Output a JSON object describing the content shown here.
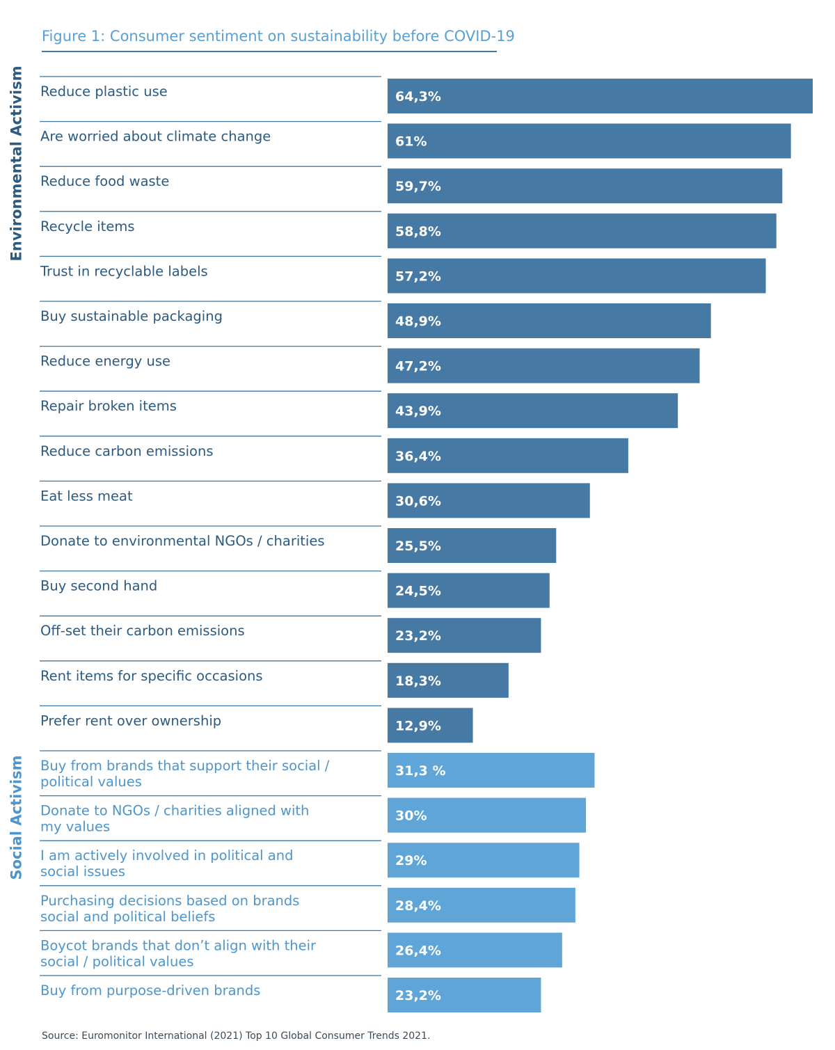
{
  "title": "Figure 1: Consumer sentiment on sustainability before COVID-19",
  "source": "Source: Euromonitor International (2021) Top 10 Global Consumer Trends 2021.",
  "colors": {
    "title": "#5b9fd0",
    "env_bar": "#4679a4",
    "env_text": "#2c5a80",
    "social_bar": "#5fa5d8",
    "social_text": "#4d95cc",
    "rule": "#3f78a5",
    "bar_label": "#ffffff"
  },
  "chart_data": {
    "type": "bar",
    "orientation": "horizontal",
    "title": "Figure 1: Consumer sentiment on sustainability before COVID-19",
    "xlim": [
      0,
      64.3
    ],
    "grid": false,
    "groups": [
      {
        "name": "Environmental Activism",
        "categories": [
          "Reduce plastic use",
          "Are worried about climate change",
          "Reduce food waste",
          "Recycle items",
          "Trust in recyclable labels",
          "Buy sustainable packaging",
          "Reduce energy use",
          "Repair broken items",
          "Reduce carbon emissions",
          "Eat less meat",
          "Donate to environmental NGOs / charities",
          "Buy second hand",
          "Off-set their carbon emissions",
          "Rent items for specific occasions",
          "Prefer rent over ownership"
        ],
        "values": [
          64.3,
          61,
          59.7,
          58.8,
          57.2,
          48.9,
          47.2,
          43.9,
          36.4,
          30.6,
          25.5,
          24.5,
          23.2,
          18.3,
          12.9
        ],
        "value_labels": [
          "64,3%",
          "61%",
          "59,7%",
          "58,8%",
          "57,2%",
          "48,9%",
          "47,2%",
          "43,9%",
          "36,4%",
          "30,6%",
          "25,5%",
          "24,5%",
          "23,2%",
          "18,3%",
          "12,9%"
        ]
      },
      {
        "name": "Social Activism",
        "categories": [
          [
            "Buy from brands that support their social /",
            "political values"
          ],
          [
            "Donate to NGOs / charities aligned with",
            "my values"
          ],
          [
            "I am actively involved in political and",
            "social issues"
          ],
          [
            "Purchasing decisions based on brands",
            "social and political beliefs"
          ],
          [
            "Boycot brands that don’t align with their",
            "social / political values"
          ],
          [
            "Buy from purpose-driven brands"
          ]
        ],
        "values": [
          31.3,
          30,
          29,
          28.4,
          26.4,
          23.2
        ],
        "value_labels": [
          "31,3 %",
          "30%",
          "29%",
          "28,4%",
          "26,4%",
          "23,2%"
        ]
      }
    ]
  }
}
